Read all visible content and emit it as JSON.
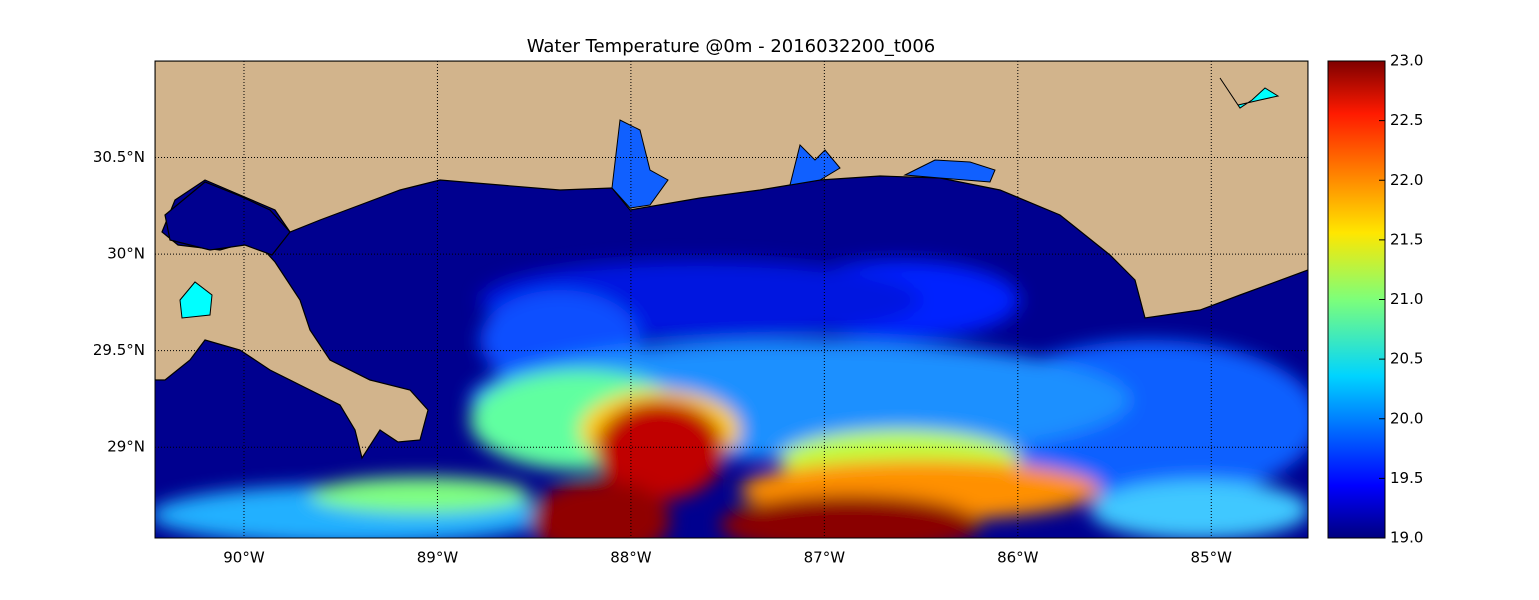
{
  "map": {
    "title": "Water Temperature @0m - 2016032200_t006",
    "xlim": [
      -90.46,
      -84.5
    ],
    "ylim": [
      28.53,
      31.0
    ],
    "xticks": [
      {
        "value": -90,
        "label": "90°W"
      },
      {
        "value": -89,
        "label": "89°W"
      },
      {
        "value": -88,
        "label": "88°W"
      },
      {
        "value": -87,
        "label": "87°W"
      },
      {
        "value": -86,
        "label": "86°W"
      },
      {
        "value": -85,
        "label": "85°W"
      }
    ],
    "yticks": [
      {
        "value": 29,
        "label": "29°N"
      },
      {
        "value": 29.5,
        "label": "29.5°N"
      },
      {
        "value": 30,
        "label": "30°N"
      },
      {
        "value": 30.5,
        "label": "30.5°N"
      }
    ],
    "grid": true,
    "colorbar": {
      "lim": [
        19,
        23
      ],
      "ticks": [
        {
          "value": 19,
          "label": "19.0"
        },
        {
          "value": 19.5,
          "label": "19.5"
        },
        {
          "value": 20,
          "label": "20.0"
        },
        {
          "value": 20.5,
          "label": "20.5"
        },
        {
          "value": 21,
          "label": "21.0"
        },
        {
          "value": 21.5,
          "label": "21.5"
        },
        {
          "value": 22,
          "label": "22.0"
        },
        {
          "value": 22.5,
          "label": "22.5"
        },
        {
          "value": 23,
          "label": "23.0"
        }
      ]
    }
  }
}
